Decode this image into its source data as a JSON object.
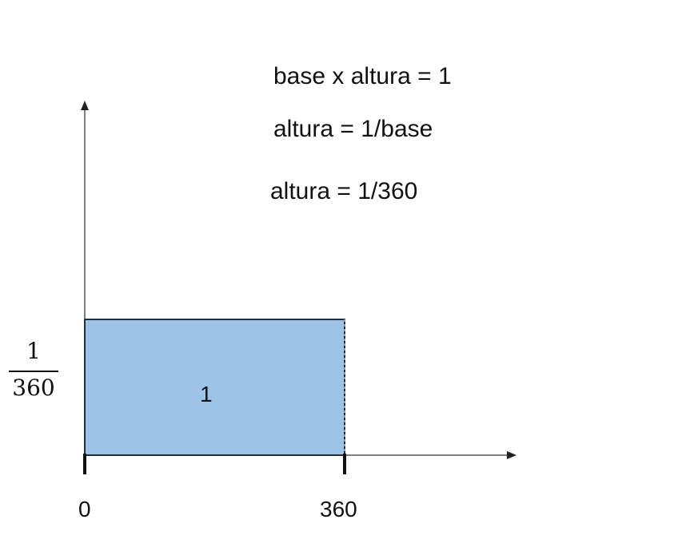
{
  "equations": [
    "base x altura = 1",
    "altura = 1/base",
    "altura = 1/360"
  ],
  "y_label": {
    "numerator": "1",
    "denominator": "360"
  },
  "x_ticks": [
    "0",
    "360"
  ],
  "area_label": "1",
  "colors": {
    "rectangle_fill": "#9dc3e6",
    "rectangle_stroke": "#1f2d3d",
    "axis": "#555555",
    "tick": "#111111"
  }
}
